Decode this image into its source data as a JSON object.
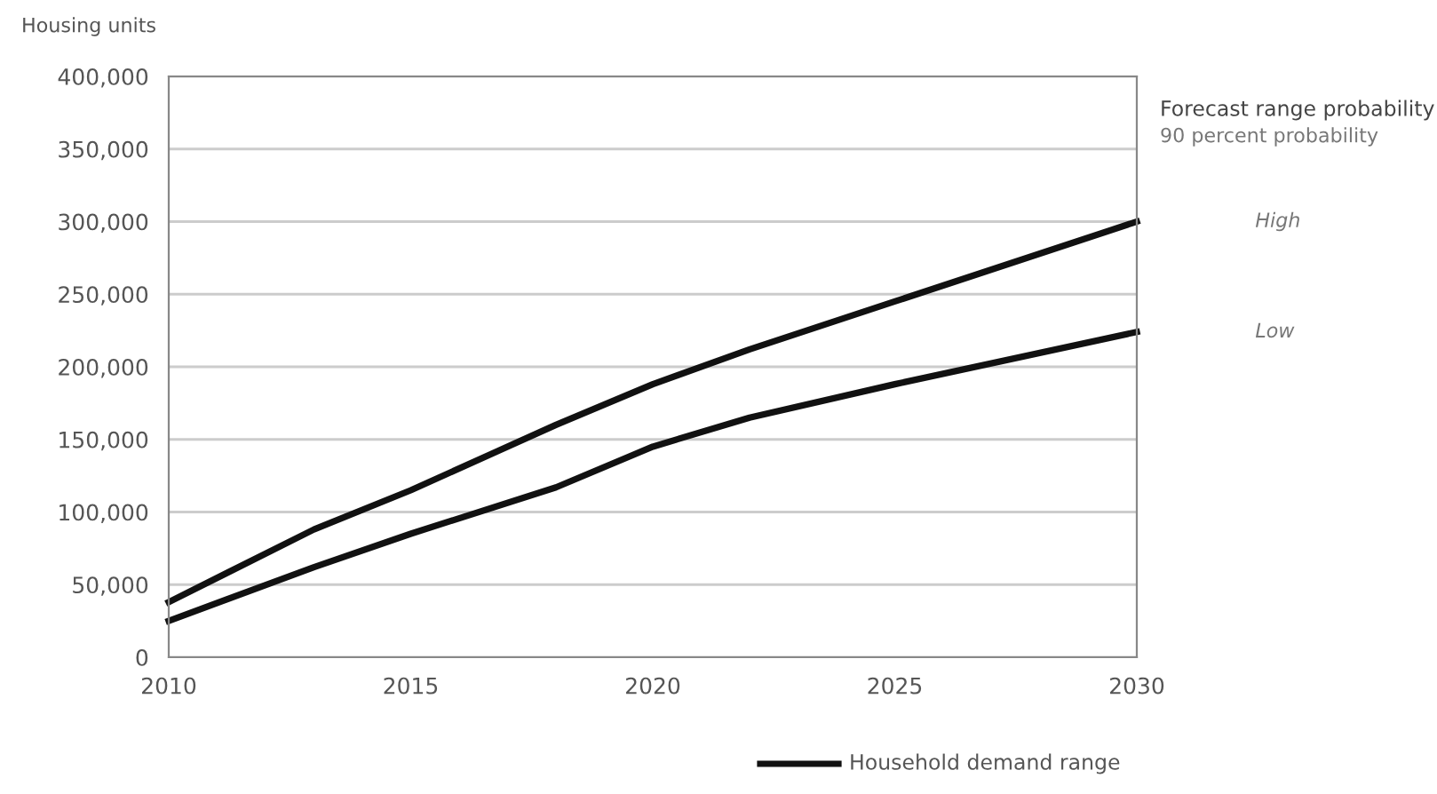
{
  "chart_data": {
    "type": "line",
    "ylabel": "Housing units",
    "x": [
      2010,
      2013,
      2015,
      2018,
      2020,
      2022,
      2025,
      2030
    ],
    "series": [
      {
        "name": "High",
        "color": "#111111",
        "values": [
          38000,
          88000,
          115000,
          160000,
          188000,
          212000,
          245000,
          300000
        ]
      },
      {
        "name": "Low",
        "color": "#111111",
        "values": [
          25000,
          62000,
          85000,
          117000,
          145000,
          165000,
          188000,
          224000
        ]
      }
    ],
    "xlim": [
      2010,
      2030
    ],
    "xticks": [
      2010,
      2015,
      2020,
      2025,
      2030
    ],
    "ylim": [
      0,
      400000
    ],
    "yticks": [
      {
        "value": 0,
        "label": "0"
      },
      {
        "value": 50000,
        "label": "50,000"
      },
      {
        "value": 100000,
        "label": "100,000"
      },
      {
        "value": 150000,
        "label": "150,000"
      },
      {
        "value": 200000,
        "label": "200,000"
      },
      {
        "value": 250000,
        "label": "250,000"
      },
      {
        "value": 300000,
        "label": "300,000"
      },
      {
        "value": 350000,
        "label": "350,000"
      },
      {
        "value": 400000,
        "label": "400,000"
      }
    ],
    "grid": "y",
    "annotations": [
      "Forecast range probability",
      "90 percent probability",
      "Household demand range"
    ]
  }
}
